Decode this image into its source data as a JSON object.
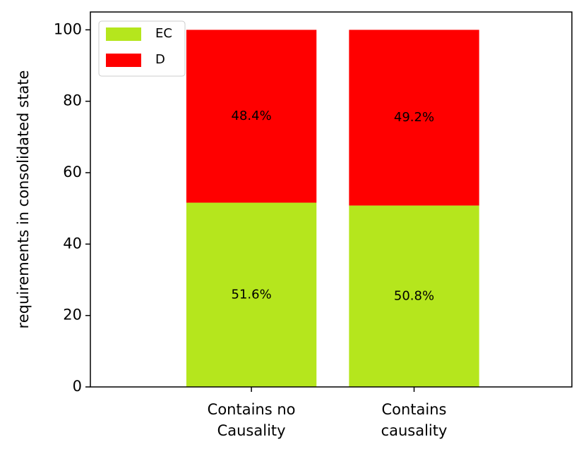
{
  "chart_data": {
    "type": "bar",
    "stacked": true,
    "categories": [
      "Contains no\nCausality",
      "Contains\ncausality"
    ],
    "y_label": "requirements in consolidated state",
    "series": [
      {
        "name": "EC",
        "color": "#b5e61d",
        "values": [
          51.6,
          50.8
        ],
        "value_labels": [
          "51.6%",
          "50.8%"
        ]
      },
      {
        "name": "D",
        "color": "#ff0000",
        "values": [
          48.4,
          49.2
        ],
        "value_labels": [
          "48.4%",
          "49.2%"
        ]
      }
    ],
    "ylim": [
      0,
      105
    ],
    "yticks": [
      0,
      20,
      40,
      60,
      80,
      100
    ],
    "grid": false,
    "legend": "upper left"
  }
}
